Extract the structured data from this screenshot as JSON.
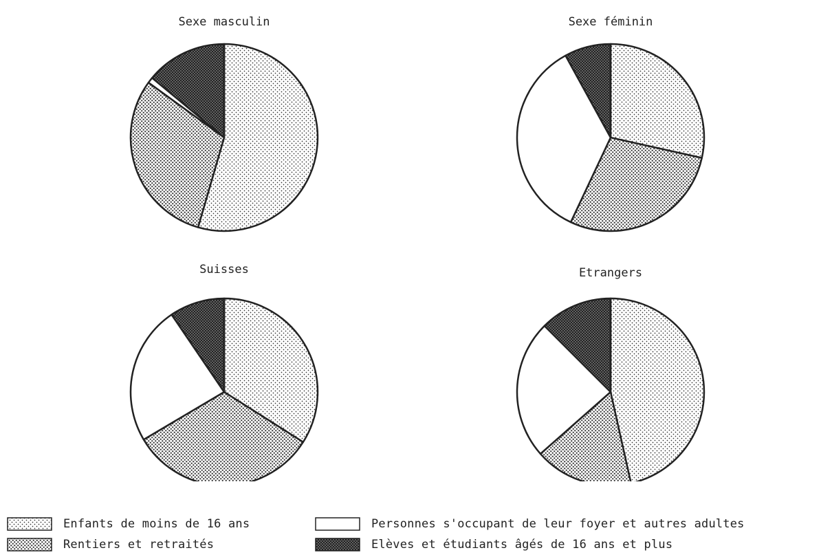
{
  "colors": {
    "ink": "#222222",
    "background": "#ffffff"
  },
  "legend": [
    {
      "label": "Enfants de moins de 16 ans",
      "pattern": "pat-light"
    },
    {
      "label": "Rentiers et retraités",
      "pattern": "pat-medium"
    },
    {
      "label": "Personnes s'occupant de leur foyer et autres adultes",
      "pattern": "pat-none"
    },
    {
      "label": "Elèves et étudiants âgés de 16 ans et plus",
      "pattern": "pat-dark"
    }
  ],
  "chart_data": [
    {
      "type": "pie",
      "title": "Sexe masculin",
      "categories": [
        "Enfants de moins de 16 ans",
        "Rentiers et retraités",
        "Personnes s'occupant de leur foyer et autres adultes",
        "Elèves et étudiants âgés de 16 ans et plus"
      ],
      "values": [
        54.5,
        30.5,
        1.0,
        14.0
      ]
    },
    {
      "type": "pie",
      "title": "Sexe féminin",
      "categories": [
        "Enfants de moins de 16 ans",
        "Rentiers et retraités",
        "Personnes s'occupant de leur foyer et autres adultes",
        "Elèves et étudiants âgés de 16 ans et plus"
      ],
      "values": [
        28.5,
        28.5,
        35.0,
        8.0
      ]
    },
    {
      "type": "pie",
      "title": "Suisses",
      "categories": [
        "Enfants de moins de 16 ans",
        "Rentiers et retraités",
        "Personnes s'occupant de leur foyer et autres adultes",
        "Elèves et étudiants âgés de 16 ans et plus"
      ],
      "values": [
        34.0,
        32.5,
        24.0,
        9.5
      ]
    },
    {
      "type": "pie",
      "title": "Etrangers",
      "categories": [
        "Enfants de moins de 16 ans",
        "Rentiers et retraités",
        "Personnes s'occupant de leur foyer et autres adultes",
        "Elèves et étudiants âgés de 16 ans et plus"
      ],
      "values": [
        46.5,
        17.0,
        24.0,
        12.5
      ]
    }
  ]
}
